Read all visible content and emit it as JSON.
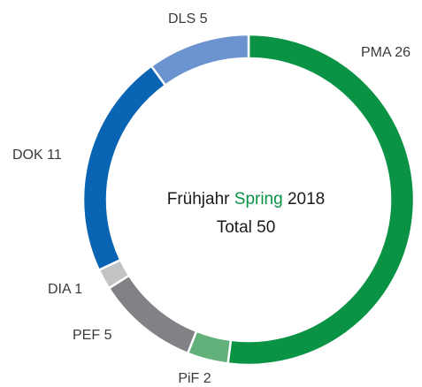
{
  "chart_data": {
    "type": "donut",
    "categories": [
      "PMA",
      "PiF",
      "PEF",
      "DIA",
      "DOK",
      "DLS"
    ],
    "values": [
      26,
      2,
      5,
      1,
      11,
      5
    ],
    "colors": [
      "#0a9344",
      "#63b17a",
      "#808285",
      "#c2c3c5",
      "#0a64b4",
      "#6b93cf"
    ],
    "center_text": [
      "Frühjahr",
      "Spring",
      "2018"
    ],
    "center_highlight_color": "#0a9344",
    "total_label": "Total",
    "total": 50
  }
}
